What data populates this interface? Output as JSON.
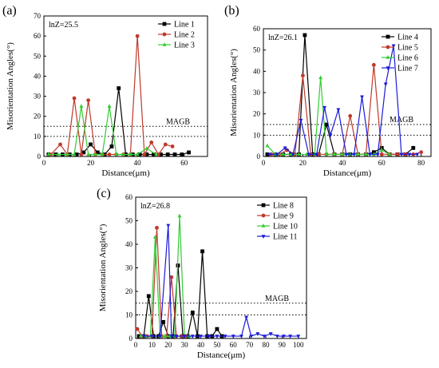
{
  "chart_data": [
    {
      "type": "line",
      "panel": "(a)",
      "annotation": "lnZ=25.5",
      "threshold_label": "MAGB",
      "thresholds": [
        10,
        15
      ],
      "xlabel": "Distance(μm)",
      "ylabel": "Misorientation Angles(°)",
      "xlim": [
        0,
        70
      ],
      "ylim": [
        0,
        70
      ],
      "xticks": [
        0,
        20,
        40,
        60
      ],
      "yticks": [
        0,
        10,
        20,
        30,
        40,
        50,
        60,
        70
      ],
      "legend_position": "top-right",
      "series": [
        {
          "name": "Line 1",
          "color": "#000000",
          "marker": "square",
          "x": [
            2,
            5,
            8,
            11,
            14,
            17,
            20,
            23,
            26,
            29,
            32,
            35,
            38,
            41,
            44,
            47,
            50,
            53,
            56,
            59,
            62
          ],
          "y": [
            1,
            1,
            1,
            1,
            1,
            2,
            6,
            2,
            1,
            5,
            34,
            1,
            1,
            1,
            1,
            1,
            1,
            1,
            1,
            1,
            2
          ]
        },
        {
          "name": "Line 2",
          "color": "#c0392b",
          "marker": "circle",
          "x": [
            3,
            7,
            10,
            13,
            16,
            19,
            22,
            25,
            28,
            31,
            34,
            37,
            40,
            43,
            46,
            49,
            52,
            55
          ],
          "y": [
            1,
            6,
            1,
            29,
            1,
            28,
            1,
            1,
            1,
            1,
            1,
            1,
            60,
            1,
            7,
            1,
            6,
            5
          ]
        },
        {
          "name": "Line 3",
          "color": "#33cc33",
          "marker": "triangle-up",
          "x": [
            2,
            6,
            10,
            13,
            16,
            19,
            22,
            25,
            28,
            31,
            34,
            37,
            40,
            44,
            48
          ],
          "y": [
            1,
            1,
            1,
            1,
            25,
            1,
            1,
            1,
            25,
            1,
            1,
            1,
            1,
            4,
            1
          ]
        }
      ]
    },
    {
      "type": "line",
      "panel": "(b)",
      "annotation": "lnZ=26.1",
      "threshold_label": "MAGB",
      "thresholds": [
        10,
        15
      ],
      "xlabel": "Distance(μm)",
      "ylabel": "Misorientation Angles(°)",
      "xlim": [
        0,
        85
      ],
      "ylim": [
        0,
        60
      ],
      "xticks": [
        0,
        20,
        40,
        60,
        80
      ],
      "yticks": [
        0,
        10,
        20,
        30,
        40,
        50,
        60
      ],
      "legend_position": "top-right",
      "series": [
        {
          "name": "Line 4",
          "color": "#000000",
          "marker": "square",
          "x": [
            2,
            6,
            10,
            14,
            18,
            21,
            25,
            28,
            32,
            36,
            40,
            44,
            48,
            52,
            56,
            60,
            64,
            68,
            72,
            76
          ],
          "y": [
            1,
            1,
            1,
            1,
            1,
            57,
            1,
            1,
            15,
            1,
            1,
            1,
            1,
            1,
            2,
            4,
            1,
            1,
            1,
            4
          ]
        },
        {
          "name": "Line 5",
          "color": "#c0392b",
          "marker": "circle",
          "x": [
            4,
            8,
            12,
            16,
            20,
            24,
            28,
            32,
            36,
            40,
            44,
            48,
            52,
            56,
            60,
            64,
            68,
            72,
            76,
            80
          ],
          "y": [
            1,
            1,
            3,
            1,
            38,
            1,
            1,
            1,
            1,
            1,
            19,
            1,
            1,
            43,
            1,
            1,
            1,
            1,
            1,
            2
          ]
        },
        {
          "name": "Line 6",
          "color": "#33cc33",
          "marker": "triangle-up",
          "x": [
            2,
            6,
            10,
            14,
            18,
            22,
            26,
            29,
            32,
            36,
            40,
            44,
            48,
            52,
            56,
            60,
            64
          ],
          "y": [
            5,
            1,
            1,
            1,
            1,
            1,
            1,
            37,
            1,
            1,
            1,
            1,
            1,
            1,
            1,
            3,
            1
          ]
        },
        {
          "name": "Line 7",
          "color": "#1a1adb",
          "marker": "triangle-down",
          "x": [
            3,
            7,
            11,
            15,
            19,
            23,
            27,
            31,
            34,
            38,
            42,
            46,
            50,
            54,
            58,
            62,
            66,
            70,
            74,
            78
          ],
          "y": [
            1,
            1,
            4,
            1,
            17,
            1,
            1,
            23,
            10,
            22,
            1,
            1,
            28,
            1,
            1,
            34,
            52,
            1,
            1,
            1
          ]
        }
      ]
    },
    {
      "type": "line",
      "panel": "(c)",
      "annotation": "lnZ=26.8",
      "threshold_label": "MAGB",
      "thresholds": [
        10,
        15
      ],
      "xlabel": "Distance(μm)",
      "ylabel": "Misorientation Angles(°)",
      "xlim": [
        0,
        105
      ],
      "ylim": [
        0,
        60
      ],
      "xticks": [
        0,
        10,
        20,
        30,
        40,
        50,
        60,
        70,
        80,
        90,
        100
      ],
      "yticks": [
        0,
        10,
        20,
        30,
        40,
        50,
        60
      ],
      "legend_position": "top-right",
      "series": [
        {
          "name": "Line 8",
          "color": "#000000",
          "marker": "square",
          "x": [
            2,
            5,
            8,
            11,
            14,
            17,
            20,
            23,
            26,
            29,
            32,
            35,
            38,
            41,
            44,
            47,
            50,
            53
          ],
          "y": [
            1,
            1,
            18,
            1,
            1,
            7,
            1,
            1,
            31,
            1,
            1,
            11,
            1,
            37,
            1,
            1,
            4,
            1
          ]
        },
        {
          "name": "Line 9",
          "color": "#c0392b",
          "marker": "circle",
          "x": [
            1,
            4,
            7,
            10,
            13,
            16,
            19,
            22,
            25,
            28,
            31
          ],
          "y": [
            4,
            1,
            1,
            1,
            47,
            1,
            1,
            26,
            1,
            1,
            1
          ]
        },
        {
          "name": "Line 10",
          "color": "#33cc33",
          "marker": "triangle-up",
          "x": [
            3,
            6,
            9,
            12,
            15,
            18,
            21,
            24,
            27,
            30,
            33
          ],
          "y": [
            1,
            1,
            1,
            43,
            1,
            1,
            1,
            1,
            52,
            1,
            1
          ]
        },
        {
          "name": "Line 11",
          "color": "#1a1adb",
          "marker": "triangle-down",
          "x": [
            5,
            10,
            15,
            20,
            22,
            25,
            30,
            35,
            40,
            45,
            50,
            55,
            60,
            65,
            68,
            71,
            75,
            79,
            83,
            87,
            91,
            95,
            100
          ],
          "y": [
            1,
            1,
            1,
            48,
            1,
            1,
            1,
            1,
            1,
            1,
            1,
            1,
            1,
            1,
            9,
            1,
            2,
            1,
            2,
            1,
            1,
            1,
            1
          ]
        }
      ]
    }
  ]
}
